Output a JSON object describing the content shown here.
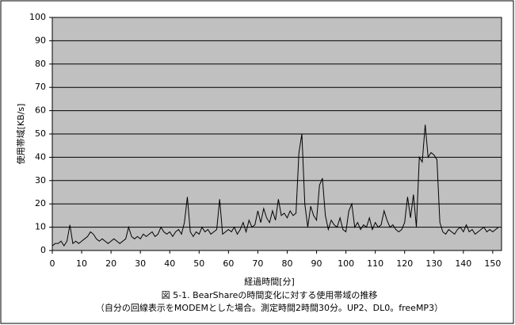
{
  "chart_data": {
    "type": "line",
    "y_label": "使用帯域[KB/s]",
    "x_label": "経過時間[分]",
    "caption": [
      "図 5-1. BearShareの時間変化に対する使用帯域の推移",
      "（自分の回線表示をMODEMとした場合。測定時間2時間30分。UP2、DL0。freeMP3）"
    ],
    "x": [
      0,
      1,
      2,
      3,
      4,
      5,
      6,
      7,
      8,
      9,
      10,
      11,
      12,
      13,
      14,
      15,
      16,
      17,
      18,
      19,
      20,
      21,
      22,
      23,
      24,
      25,
      26,
      27,
      28,
      29,
      30,
      31,
      32,
      33,
      34,
      35,
      36,
      37,
      38,
      39,
      40,
      41,
      42,
      43,
      44,
      45,
      46,
      47,
      48,
      49,
      50,
      51,
      52,
      53,
      54,
      55,
      56,
      57,
      58,
      59,
      60,
      61,
      62,
      63,
      64,
      65,
      66,
      67,
      68,
      69,
      70,
      71,
      72,
      73,
      74,
      75,
      76,
      77,
      78,
      79,
      80,
      81,
      82,
      83,
      84,
      85,
      86,
      87,
      88,
      89,
      90,
      91,
      92,
      93,
      94,
      95,
      96,
      97,
      98,
      99,
      100,
      101,
      102,
      103,
      104,
      105,
      106,
      107,
      108,
      109,
      110,
      111,
      112,
      113,
      114,
      115,
      116,
      117,
      118,
      119,
      120,
      121,
      122,
      123,
      124,
      125,
      126,
      127,
      128,
      129,
      130,
      131,
      132,
      133,
      134,
      135,
      136,
      137,
      138,
      139,
      140,
      141,
      142,
      143,
      144,
      145,
      146,
      147,
      148,
      149,
      150,
      151,
      152
    ],
    "values": [
      2,
      3,
      3,
      4,
      2,
      4,
      11,
      3,
      4,
      3,
      4,
      5,
      6,
      8,
      7,
      5,
      4,
      5,
      4,
      3,
      4,
      5,
      4,
      3,
      4,
      5,
      10,
      6,
      5,
      6,
      5,
      7,
      6,
      7,
      8,
      6,
      7,
      10,
      8,
      7,
      8,
      6,
      8,
      9,
      7,
      12,
      23,
      8,
      6,
      8,
      7,
      10,
      8,
      9,
      7,
      8,
      9,
      22,
      7,
      8,
      9,
      8,
      10,
      7,
      9,
      12,
      8,
      13,
      10,
      11,
      17,
      12,
      18,
      14,
      12,
      17,
      13,
      22,
      15,
      16,
      14,
      17,
      15,
      16,
      42,
      50,
      20,
      10,
      19,
      15,
      13,
      28,
      31,
      15,
      9,
      13,
      11,
      10,
      14,
      9,
      8,
      17,
      20,
      10,
      12,
      9,
      11,
      10,
      14,
      9,
      12,
      10,
      11,
      17,
      13,
      10,
      11,
      9,
      8,
      9,
      12,
      23,
      14,
      24,
      10,
      40,
      38,
      54,
      40,
      42,
      41,
      39,
      12,
      8,
      7,
      9,
      8,
      7,
      9,
      10,
      8,
      11,
      8,
      9,
      7,
      8,
      9,
      10,
      8,
      9,
      8,
      9,
      10
    ],
    "color": "#000000",
    "xlim": [
      0,
      153
    ],
    "xticks": [
      0,
      10,
      20,
      30,
      40,
      50,
      60,
      70,
      80,
      90,
      100,
      110,
      120,
      130,
      140,
      150
    ],
    "ylim": [
      0,
      100
    ],
    "yticks": [
      0,
      10,
      20,
      30,
      40,
      50,
      60,
      70,
      80,
      90,
      100
    ],
    "grid": true,
    "plot_background": "#c0c0c0"
  }
}
